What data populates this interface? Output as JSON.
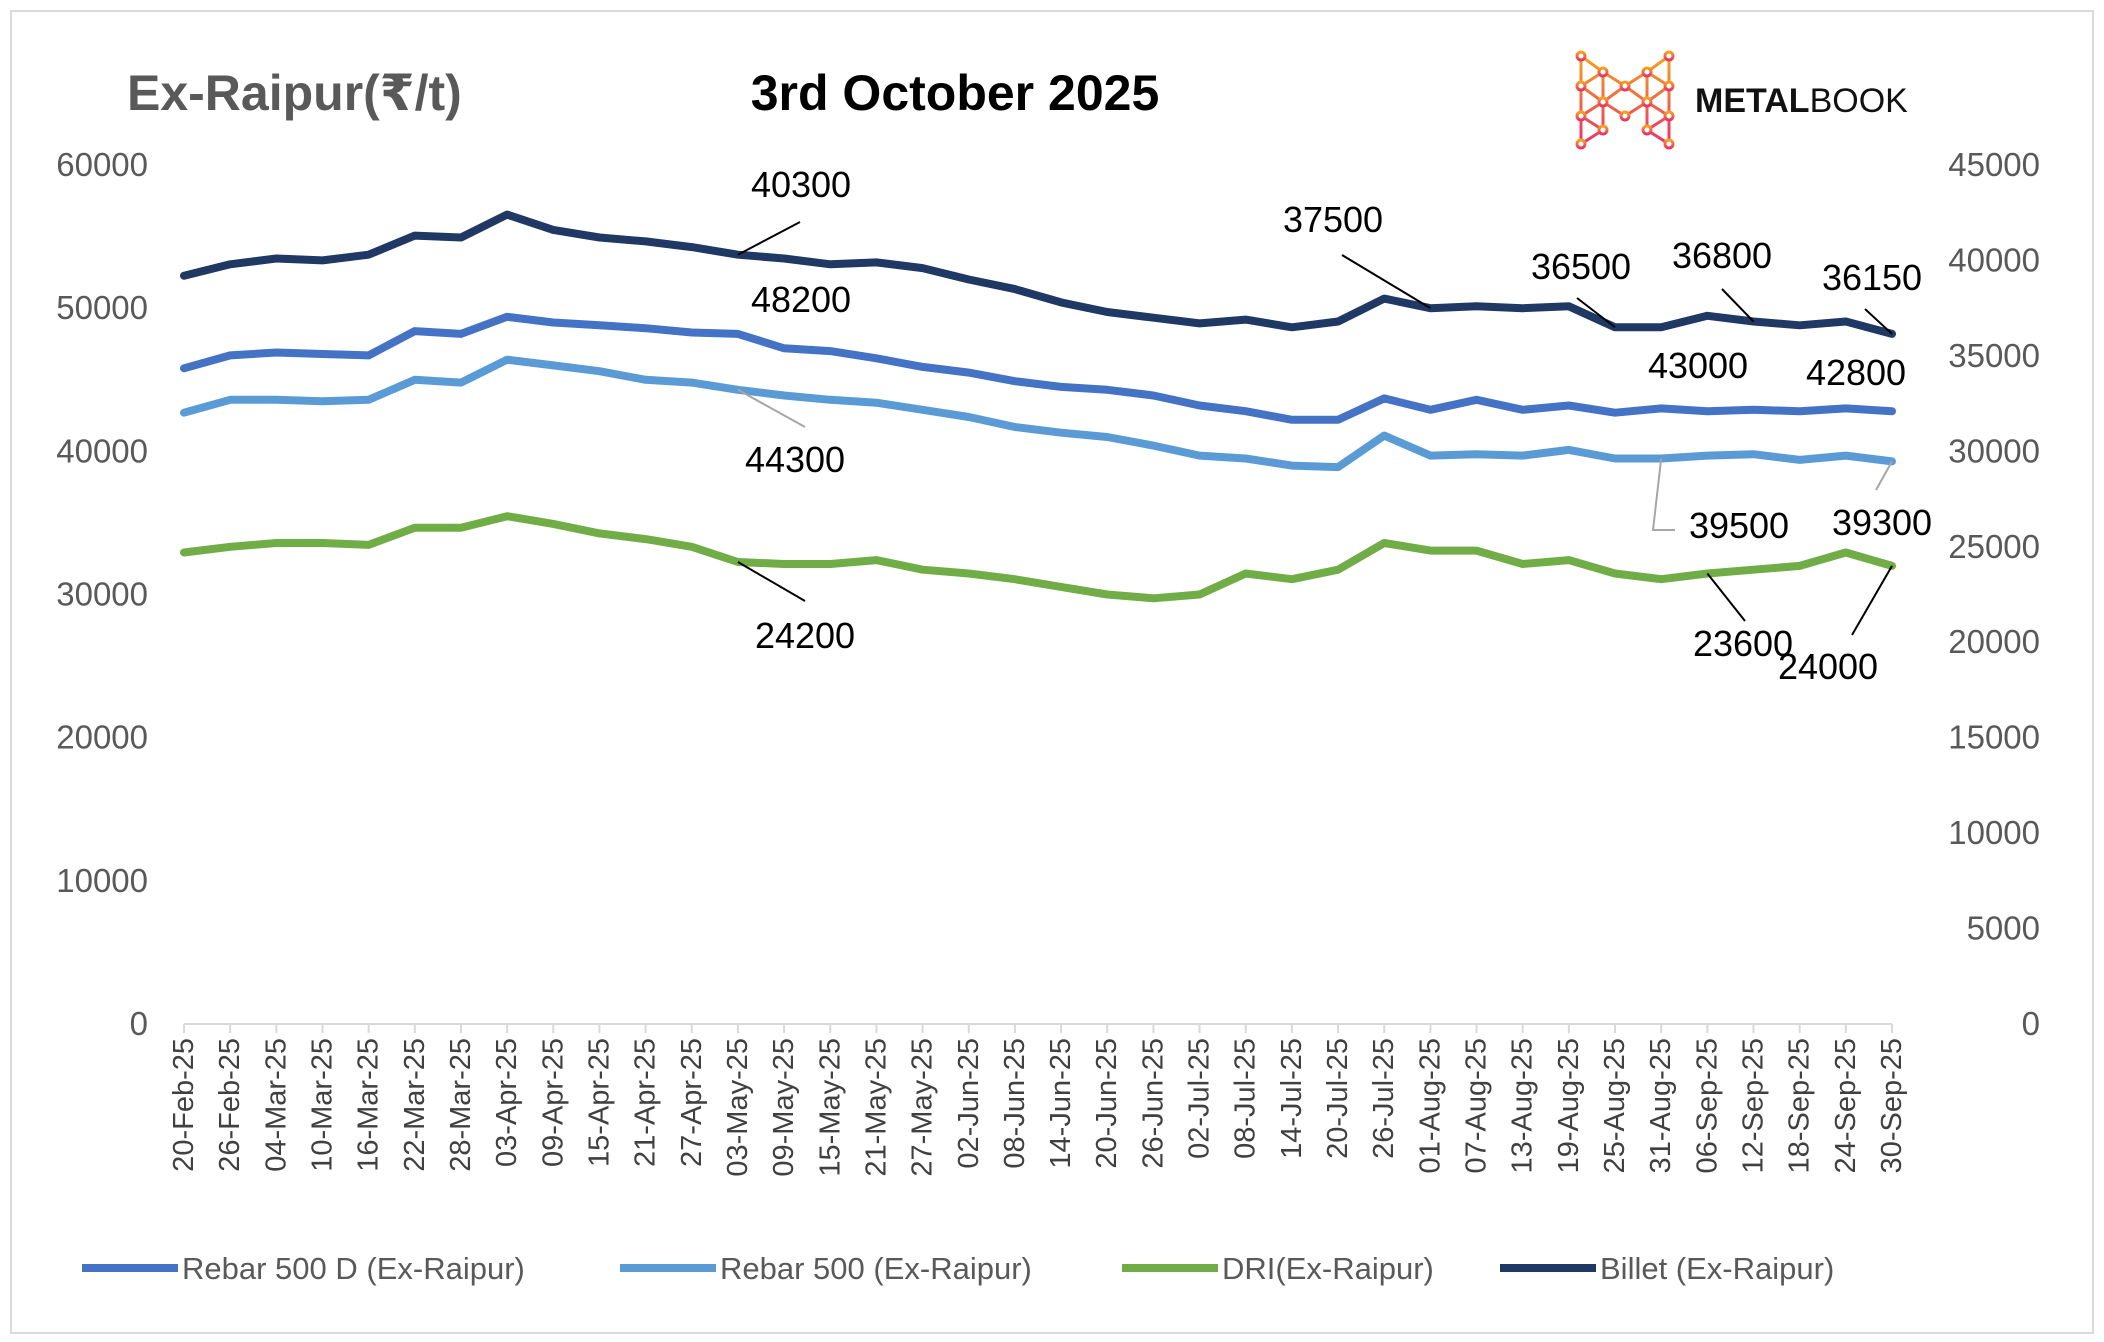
{
  "title": "3rd October 2025",
  "y_axis_title": "Ex-Raipur(₹/t)",
  "logo": {
    "bold": "METAL",
    "light": "BOOK"
  },
  "colors": {
    "rebar_500d": "#4472C4",
    "rebar_500": "#5B9BD5",
    "dri": "#70AD47",
    "billet": "#203864",
    "tick_text": "#595959",
    "gridline": "#d9d9d9"
  },
  "chart_data": {
    "type": "line",
    "title": "3rd October 2025",
    "ylabel": "Ex-Raipur(₹/t)",
    "xlabel": "",
    "ylim_left": [
      0,
      60000
    ],
    "ylim_right": [
      0,
      45000
    ],
    "yticks_left": [
      "0",
      "10000",
      "20000",
      "30000",
      "40000",
      "50000",
      "60000"
    ],
    "yticks_right": [
      "0",
      "5000",
      "10000",
      "15000",
      "20000",
      "25000",
      "30000",
      "35000",
      "40000",
      "45000"
    ],
    "grid": false,
    "legend_position": "bottom",
    "categories": [
      "20-Feb-25",
      "26-Feb-25",
      "04-Mar-25",
      "10-Mar-25",
      "16-Mar-25",
      "22-Mar-25",
      "28-Mar-25",
      "03-Apr-25",
      "09-Apr-25",
      "15-Apr-25",
      "21-Apr-25",
      "27-Apr-25",
      "03-May-25",
      "09-May-25",
      "15-May-25",
      "21-May-25",
      "27-May-25",
      "02-Jun-25",
      "08-Jun-25",
      "14-Jun-25",
      "20-Jun-25",
      "26-Jun-25",
      "02-Jul-25",
      "08-Jul-25",
      "14-Jul-25",
      "20-Jul-25",
      "26-Jul-25",
      "01-Aug-25",
      "07-Aug-25",
      "13-Aug-25",
      "19-Aug-25",
      "25-Aug-25",
      "31-Aug-25",
      "06-Sep-25",
      "12-Sep-25",
      "18-Sep-25",
      "24-Sep-25",
      "30-Sep-25"
    ],
    "series": [
      {
        "key": "rebar_500d",
        "name": "Rebar 500 D (Ex-Raipur)",
        "axis": "left",
        "values": [
          45800,
          46700,
          46900,
          46800,
          46700,
          48400,
          48200,
          49400,
          49000,
          48800,
          48600,
          48300,
          48200,
          47200,
          47000,
          46500,
          45900,
          45500,
          44900,
          44500,
          44300,
          43900,
          43200,
          42800,
          42200,
          42200,
          43700,
          42900,
          43600,
          42900,
          43200,
          42700,
          43000,
          42800,
          42900,
          42800,
          43000,
          42800
        ]
      },
      {
        "key": "rebar_500",
        "name": "Rebar 500 (Ex-Raipur)",
        "axis": "left",
        "values": [
          42700,
          43600,
          43600,
          43500,
          43600,
          45000,
          44800,
          46400,
          46000,
          45600,
          45000,
          44800,
          44300,
          43900,
          43600,
          43400,
          42900,
          42400,
          41700,
          41300,
          41000,
          40400,
          39700,
          39500,
          39000,
          38900,
          41100,
          39700,
          39800,
          39700,
          40100,
          39500,
          39500,
          39700,
          39800,
          39400,
          39700,
          39300
        ]
      },
      {
        "key": "dri",
        "name": "DRI(Ex-Raipur)",
        "axis": "right",
        "values": [
          24700,
          25000,
          25200,
          25200,
          25100,
          26000,
          26000,
          26600,
          26200,
          25700,
          25400,
          25000,
          24200,
          24100,
          24100,
          24300,
          23800,
          23600,
          23300,
          22900,
          22500,
          22300,
          22500,
          23600,
          23300,
          23800,
          25200,
          24800,
          24800,
          24100,
          24300,
          23600,
          23300,
          23600,
          23800,
          24000,
          24700,
          24000
        ]
      },
      {
        "key": "billet",
        "name": "Billet (Ex-Raipur)",
        "axis": "right",
        "values": [
          39200,
          39800,
          40100,
          40000,
          40300,
          41300,
          41200,
          42400,
          41600,
          41200,
          41000,
          40700,
          40300,
          40100,
          39800,
          39900,
          39600,
          39000,
          38500,
          37800,
          37300,
          37000,
          36700,
          36900,
          36500,
          36800,
          38000,
          37500,
          37600,
          37500,
          37600,
          36500,
          36500,
          37100,
          36800,
          36600,
          36800,
          36150
        ]
      }
    ],
    "annotations": [
      {
        "text": "40300",
        "series": "billet",
        "category": "03-May-25"
      },
      {
        "text": "48200",
        "series": "rebar_500d",
        "category": "03-May-25"
      },
      {
        "text": "44300",
        "series": "rebar_500",
        "category": "03-May-25"
      },
      {
        "text": "24200",
        "series": "dri",
        "category": "03-May-25"
      },
      {
        "text": "37500",
        "series": "billet",
        "category": "01-Aug-25"
      },
      {
        "text": "36500",
        "series": "billet",
        "category": "25-Aug-25"
      },
      {
        "text": "36800",
        "series": "billet",
        "category": "12-Sep-25"
      },
      {
        "text": "36150",
        "series": "billet",
        "category": "30-Sep-25"
      },
      {
        "text": "43000",
        "series": "rebar_500d",
        "category": "31-Aug-25"
      },
      {
        "text": "42800",
        "series": "rebar_500d",
        "category": "30-Sep-25"
      },
      {
        "text": "39500",
        "series": "rebar_500",
        "category": "31-Aug-25"
      },
      {
        "text": "39300",
        "series": "rebar_500",
        "category": "30-Sep-25"
      },
      {
        "text": "23600",
        "series": "dri",
        "category": "06-Sep-25"
      },
      {
        "text": "24000",
        "series": "dri",
        "category": "30-Sep-25"
      }
    ]
  }
}
